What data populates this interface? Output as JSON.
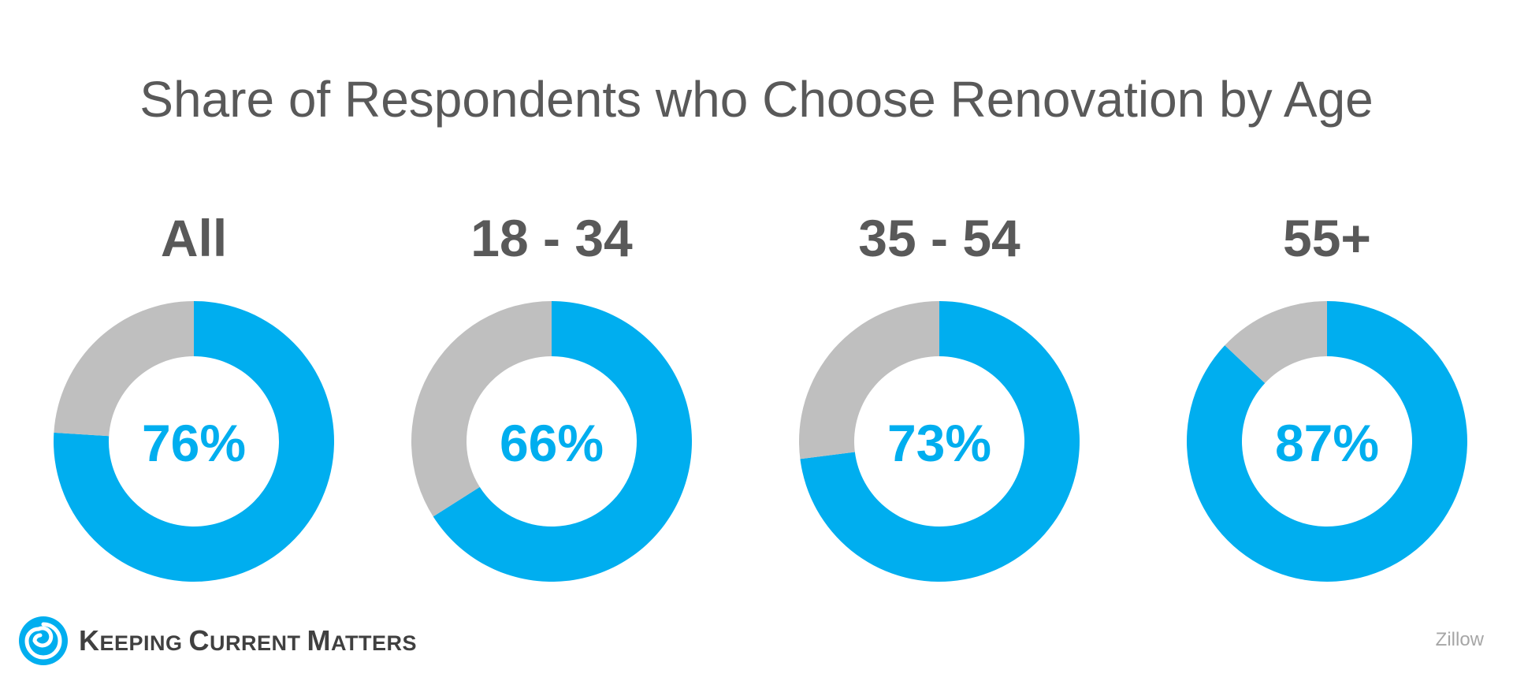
{
  "colors": {
    "accent": "#00aeef",
    "remainder": "#bfbfbf",
    "text": "#595959"
  },
  "chart_data": {
    "type": "pie",
    "title": "Share of Respondents who Choose Renovation by Age",
    "categories": [
      "All",
      "18 - 34",
      "35 - 54",
      "55+"
    ],
    "values": [
      76,
      66,
      73,
      87
    ],
    "labels": [
      "76%",
      "66%",
      "73%",
      "87%"
    ],
    "unit": "%"
  },
  "branding": {
    "logo": "swirl-icon",
    "name_parts": [
      "K",
      "EEPING ",
      "C",
      "URRENT ",
      "M",
      "ATTERS"
    ]
  },
  "source": "Zillow"
}
